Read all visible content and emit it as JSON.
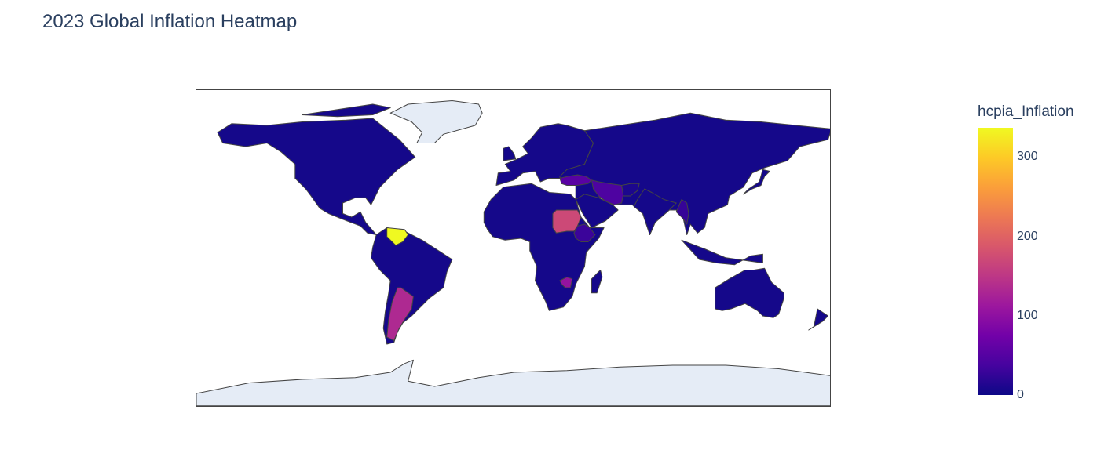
{
  "title": "2023 Global Inflation Heatmap",
  "colorbar": {
    "title": "hcpia_Inflation",
    "min": 0,
    "max": 337,
    "ticks": [
      "0",
      "100",
      "200",
      "300"
    ],
    "tick_values": [
      0,
      100,
      200,
      300
    ],
    "colors": [
      "#0d0887",
      "#46039f",
      "#7201a8",
      "#9c179e",
      "#bd3786",
      "#d8576b",
      "#ed7953",
      "#fb9f3a",
      "#fdca26",
      "#f0f921"
    ]
  },
  "map": {
    "projection": "equirectangular",
    "land_default_color": "#15088a",
    "no_data_color": "#e5ecf6",
    "border_color": "#444444",
    "regions": [
      {
        "name": "Venezuela",
        "value": 337
      },
      {
        "name": "Sudan",
        "value": 171
      },
      {
        "name": "Argentina",
        "value": 133
      },
      {
        "name": "Zimbabwe",
        "value": 105
      },
      {
        "name": "Turkey",
        "value": 54
      },
      {
        "name": "Iran",
        "value": 44
      },
      {
        "name": "Myanmar",
        "value": 27
      },
      {
        "name": "Afghanistan",
        "value": 10
      },
      {
        "name": "Ethiopia",
        "value": 30
      },
      {
        "name": "Greenland",
        "value": null
      },
      {
        "name": "Antarctica",
        "value": null
      }
    ]
  }
}
